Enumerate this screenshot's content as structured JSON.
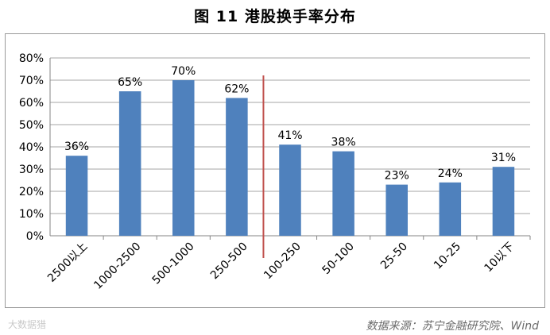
{
  "title": "图 11  港股换手率分布",
  "source": "数据来源：苏宁金融研究院、Wind",
  "watermark": "大数据猎",
  "colors": {
    "bar": "#4f81bd",
    "divider": "#c0504d",
    "grid": "#a6a6a6"
  },
  "chart_data": {
    "type": "bar",
    "title": "",
    "xlabel": "",
    "ylabel": "",
    "categories": [
      "2500以上",
      "1000-2500",
      "500-1000",
      "250-500",
      "100-250",
      "50-100",
      "25-50",
      "10-25",
      "10以下"
    ],
    "values": [
      36,
      65,
      70,
      62,
      41,
      38,
      23,
      24,
      31
    ],
    "data_labels": [
      "36%",
      "65%",
      "70%",
      "62%",
      "41%",
      "38%",
      "23%",
      "24%",
      "31%"
    ],
    "ylim": [
      0,
      80
    ],
    "y_ticks": [
      "0%",
      "10%",
      "20%",
      "30%",
      "40%",
      "50%",
      "60%",
      "70%",
      "80%"
    ],
    "grid": true,
    "legend": "none",
    "divider_between": [
      "250-500",
      "100-250"
    ]
  }
}
